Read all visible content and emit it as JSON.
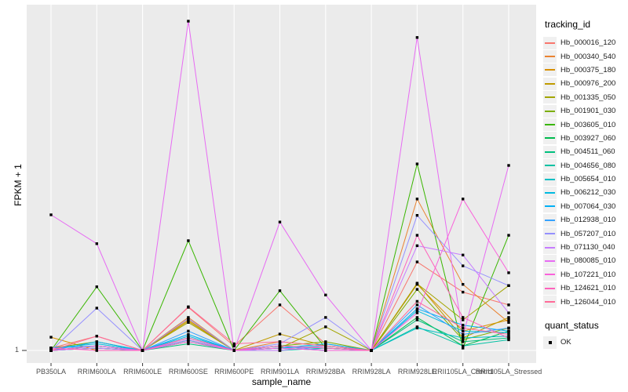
{
  "chart_data": {
    "type": "line",
    "xlabel": "sample_name",
    "ylabel": "FPKM + 1",
    "y_scale": "log10",
    "y_tick_labels": [
      "1"
    ],
    "panel_bg": "#EBEBEB",
    "grid_color": "#FFFFFF",
    "point_color": "#000000",
    "tick_label_color": "#4d4d4d",
    "categories": [
      "PB350LA",
      "RRIM600LA",
      "RRIM600LE",
      "RRIM600SE",
      "RRIM600PE",
      "RRIM901LA",
      "RRIM928BA",
      "RRIM928LA",
      "RRIM928LE",
      "RRII105LA_Control",
      "RRII105LA_Stressed"
    ],
    "series": [
      {
        "name": "Hb_000016_120",
        "color": "#F8766D",
        "values": [
          1.05,
          1.35,
          1.0,
          2.47,
          1.1,
          2.6,
          1.15,
          1.0,
          6.4,
          3.4,
          2.6
        ]
      },
      {
        "name": "Hb_000340_540",
        "color": "#EA8331",
        "values": [
          1.0,
          1.1,
          1.0,
          2.0,
          1.0,
          1.2,
          1.1,
          1.0,
          24,
          4.0,
          1.8
        ]
      },
      {
        "name": "Hb_000375_180",
        "color": "#D89000",
        "values": [
          1.32,
          1.0,
          1.0,
          1.9,
          1.0,
          1.1,
          1.05,
          1.0,
          4.0,
          1.5,
          1.9
        ]
      },
      {
        "name": "Hb_000976_200",
        "color": "#C09B00",
        "values": [
          1.0,
          1.05,
          1.0,
          1.85,
          1.0,
          1.41,
          1.1,
          1.0,
          4.1,
          1.3,
          2.0
        ]
      },
      {
        "name": "Hb_001335_050",
        "color": "#A3A500",
        "values": [
          1.0,
          1.1,
          1.0,
          1.8,
          1.0,
          1.05,
          1.64,
          1.0,
          4.05,
          1.9,
          3.9
        ]
      },
      {
        "name": "Hb_001901_030",
        "color": "#7CAE00",
        "values": [
          1.05,
          1.2,
          1.0,
          1.3,
          1.0,
          1.1,
          1.2,
          1.0,
          3.6,
          1.25,
          1.6
        ]
      },
      {
        "name": "Hb_003605_010",
        "color": "#39B600",
        "values": [
          1.0,
          3.8,
          1.0,
          10,
          1.0,
          3.5,
          1.05,
          1.0,
          50,
          1.05,
          11.2
        ]
      },
      {
        "name": "Hb_003927_060",
        "color": "#00BB4E",
        "values": [
          1.0,
          1.05,
          1.0,
          1.2,
          1.0,
          1.0,
          1.1,
          1.0,
          2.0,
          1.1,
          1.5
        ]
      },
      {
        "name": "Hb_004511_060",
        "color": "#00BF7D",
        "values": [
          1.05,
          1.1,
          1.0,
          1.15,
          1.0,
          1.05,
          1.0,
          1.0,
          1.9,
          1.2,
          1.3
        ]
      },
      {
        "name": "Hb_004656_080",
        "color": "#00C1A3",
        "values": [
          1.0,
          1.05,
          1.0,
          1.24,
          1.0,
          1.0,
          1.05,
          1.0,
          1.64,
          1.1,
          1.25
        ]
      },
      {
        "name": "Hb_005654_010",
        "color": "#00BFC4",
        "values": [
          1.0,
          1.1,
          1.0,
          1.3,
          1.0,
          1.05,
          1.1,
          1.0,
          1.6,
          1.3,
          1.35
        ]
      },
      {
        "name": "Hb_006212_030",
        "color": "#00BAE0",
        "values": [
          1.05,
          1.15,
          1.0,
          1.35,
          1.0,
          1.1,
          1.05,
          1.0,
          2.3,
          1.5,
          1.45
        ]
      },
      {
        "name": "Hb_007064_030",
        "color": "#00B0F6",
        "values": [
          1.0,
          1.2,
          1.0,
          1.4,
          1.0,
          1.05,
          1.15,
          1.0,
          2.4,
          1.7,
          1.5
        ]
      },
      {
        "name": "Hb_012938_010",
        "color": "#35A2FF",
        "values": [
          1.05,
          1.1,
          1.0,
          1.5,
          1.0,
          1.1,
          1.0,
          1.0,
          2.6,
          1.4,
          1.6
        ]
      },
      {
        "name": "Hb_057207_010",
        "color": "#9590FF",
        "values": [
          1.0,
          2.43,
          1.0,
          1.95,
          1.0,
          1.15,
          2.0,
          1.0,
          17,
          5.9,
          3.9
        ]
      },
      {
        "name": "Hb_071130_040",
        "color": "#C77CFF",
        "values": [
          1.0,
          1.05,
          1.0,
          1.25,
          1.0,
          1.0,
          1.1,
          1.0,
          9.0,
          7.4,
          2.2
        ]
      },
      {
        "name": "Hb_080085_010",
        "color": "#E76BF3",
        "values": [
          17.2,
          9.4,
          1.0,
          1000,
          1.0,
          14.8,
          3.2,
          1.0,
          710,
          1.35,
          48.5
        ]
      },
      {
        "name": "Hb_107221_010",
        "color": "#FA62DB",
        "values": [
          1.0,
          1.1,
          1.0,
          1.2,
          1.0,
          1.05,
          1.0,
          1.0,
          2.2,
          24,
          5.1
        ]
      },
      {
        "name": "Hb_124621_010",
        "color": "#FF62BC",
        "values": [
          1.05,
          1.0,
          1.0,
          1.3,
          1.0,
          1.1,
          1.05,
          1.0,
          11.2,
          2.0,
          1.3
        ]
      },
      {
        "name": "Hb_126044_010",
        "color": "#FF6A98",
        "values": [
          1.0,
          1.35,
          1.0,
          2.5,
          1.15,
          1.2,
          1.1,
          1.0,
          2.8,
          1.6,
          1.4
        ]
      }
    ],
    "legend": {
      "tracking_id_title": "tracking_id",
      "quant_status_title": "quant_status",
      "quant_status_value": "OK"
    }
  }
}
